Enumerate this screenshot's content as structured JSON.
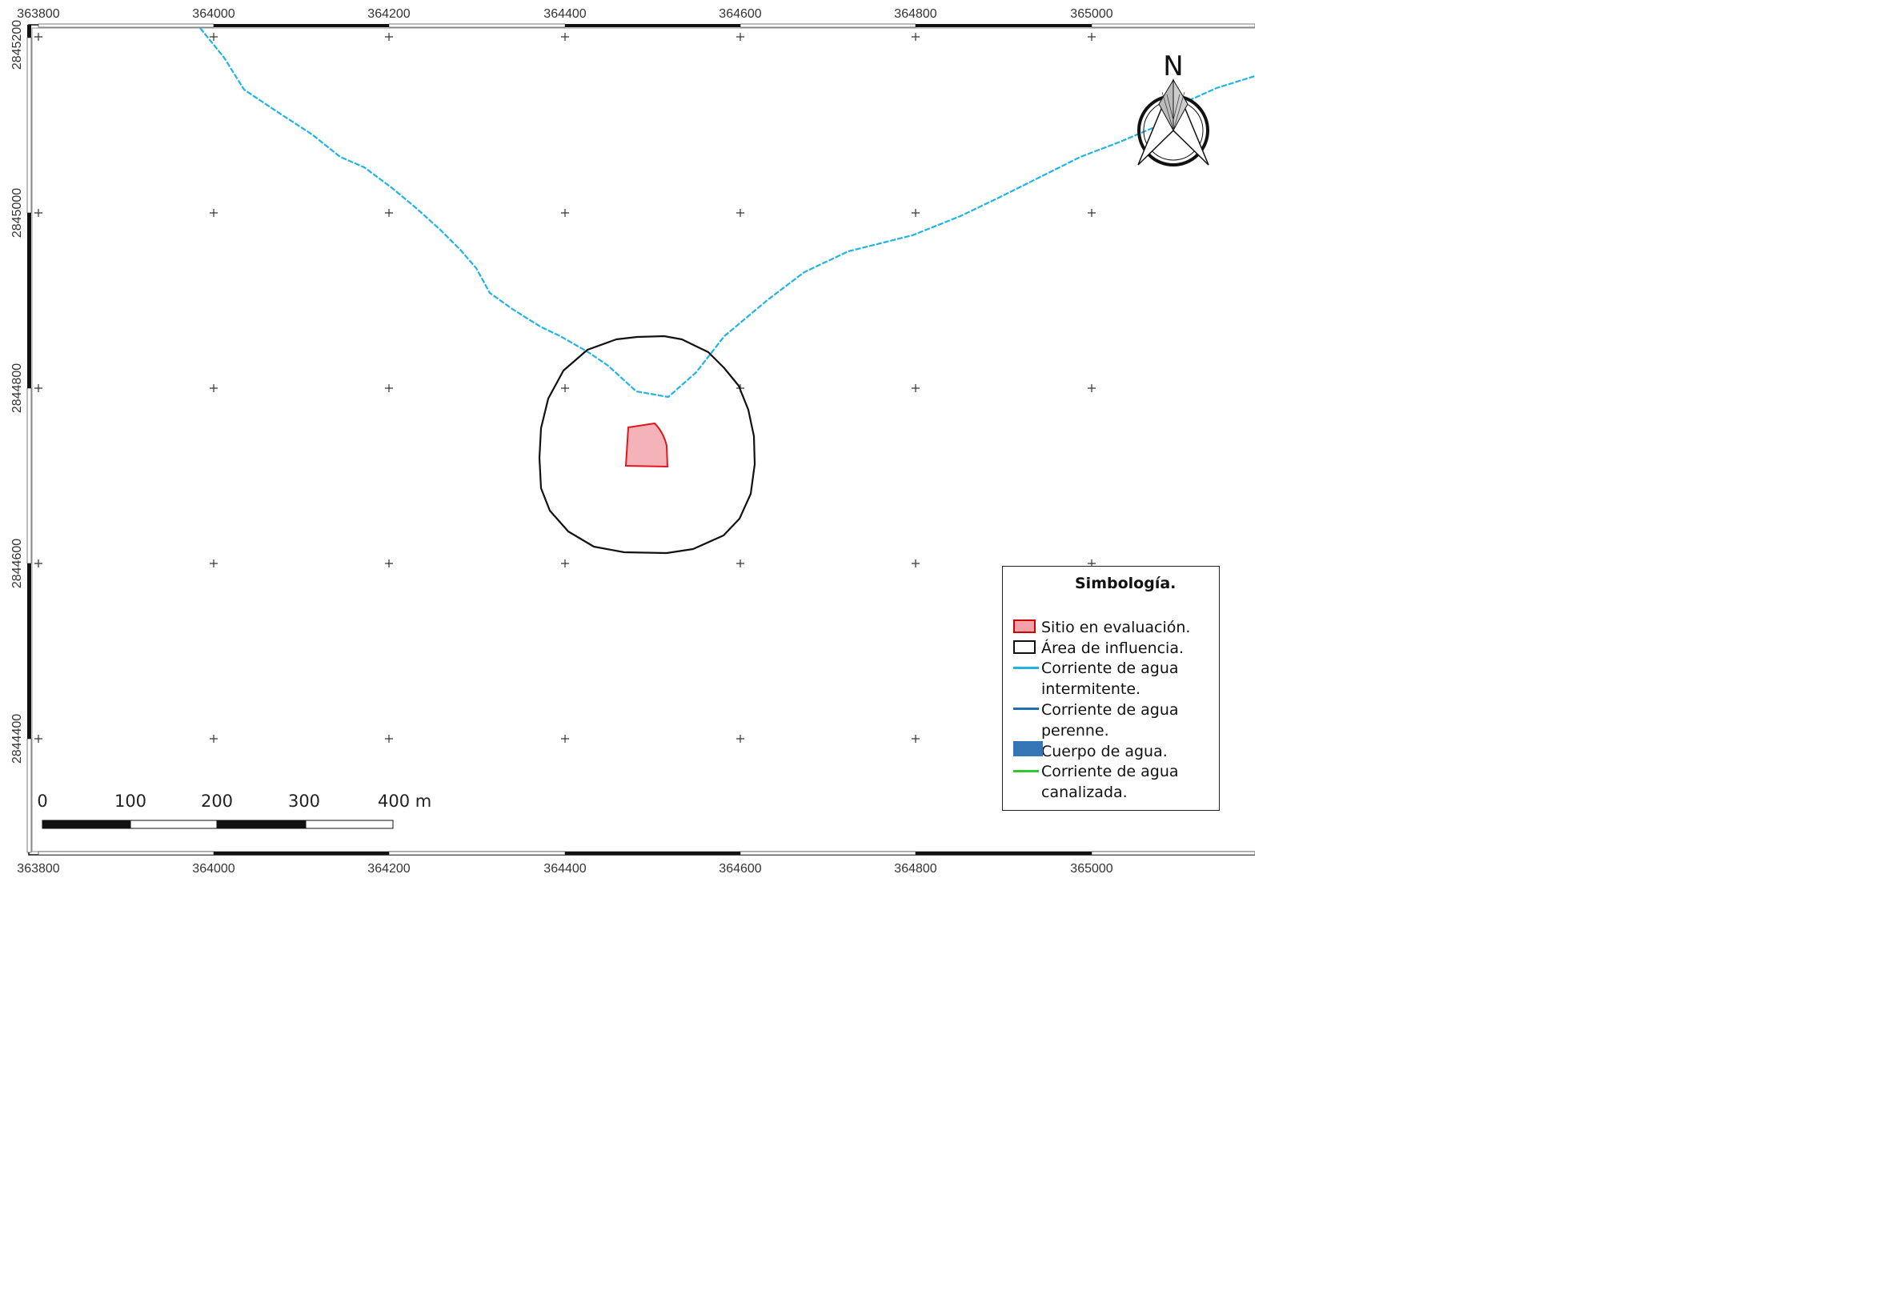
{
  "x_ticks": [
    "363800",
    "364000",
    "364200",
    "364400",
    "364600",
    "364800",
    "365000"
  ],
  "y_ticks": [
    "2845200",
    "2845000",
    "2844800",
    "2844600",
    "2844400"
  ],
  "north_label": "N",
  "scale_bar": {
    "labels": [
      "0",
      "100",
      "200",
      "300",
      "400 m"
    ]
  },
  "legend": {
    "title": "Simbología.",
    "items": [
      {
        "label": "Sitio en evaluación.",
        "symbol": "polygon-fill-icon",
        "color": "#f4a0a8",
        "stroke": "#cc0000"
      },
      {
        "label": "Área de influencia.",
        "symbol": "polygon-outline-icon",
        "color": "#ffffff",
        "stroke": "#111111"
      },
      {
        "label": "Corriente de agua intermitente.",
        "symbol": "dashed-line-icon",
        "color": "#1eb4e6"
      },
      {
        "label": "Corriente de agua perenne.",
        "symbol": "line-icon",
        "color": "#1f6fb0"
      },
      {
        "label": "Cuerpo de agua.",
        "symbol": "fill-icon",
        "color": "#3375b5"
      },
      {
        "label": "Corriente de agua canalizada.",
        "symbol": "line-icon",
        "color": "#2ec92e"
      }
    ]
  },
  "colors": {
    "frame": "#111111",
    "stream": "#1eb4e6",
    "site_fill": "#f4a0a8",
    "site_stroke": "#e0181e",
    "influence_stroke": "#111111"
  }
}
